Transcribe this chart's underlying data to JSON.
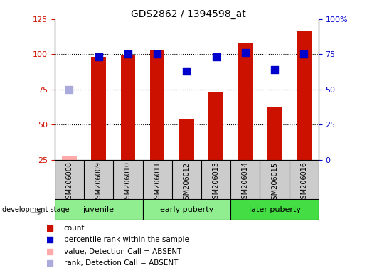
{
  "title": "GDS2862 / 1394598_at",
  "samples": [
    "GSM206008",
    "GSM206009",
    "GSM206010",
    "GSM206011",
    "GSM206012",
    "GSM206013",
    "GSM206014",
    "GSM206015",
    "GSM206016"
  ],
  "counts": [
    28,
    98,
    99,
    103,
    54,
    73,
    108,
    62,
    117
  ],
  "ranks": [
    50,
    73,
    75,
    75,
    63,
    73,
    76,
    64,
    75
  ],
  "absent_flags": [
    true,
    false,
    false,
    false,
    false,
    false,
    false,
    false,
    false
  ],
  "group_info": [
    {
      "label": "juvenile",
      "start": 0,
      "end": 2,
      "color": "#90EE90"
    },
    {
      "label": "early puberty",
      "start": 3,
      "end": 5,
      "color": "#90EE90"
    },
    {
      "label": "later puberty",
      "start": 6,
      "end": 8,
      "color": "#44DD44"
    }
  ],
  "ylim_left": [
    25,
    125
  ],
  "ylim_right": [
    0,
    100
  ],
  "yticks_left": [
    25,
    50,
    75,
    100,
    125
  ],
  "yticks_right": [
    0,
    25,
    50,
    75,
    100
  ],
  "ytick_labels_right": [
    "0",
    "25",
    "50",
    "75",
    "100%"
  ],
  "bar_color_present": "#CC1100",
  "bar_color_absent": "#FFAAAA",
  "rank_color_present": "#0000CC",
  "rank_color_absent": "#AAAADD",
  "bar_width": 0.5,
  "rank_marker_size": 45,
  "background_color": "#CCCCCC",
  "left_label_color": "#CC1100",
  "right_label_color": "#0000CC",
  "legend_items": [
    {
      "color": "#CC1100",
      "label": "count"
    },
    {
      "color": "#0000CC",
      "label": "percentile rank within the sample"
    },
    {
      "color": "#FFAAAA",
      "label": "value, Detection Call = ABSENT"
    },
    {
      "color": "#AAAADD",
      "label": "rank, Detection Call = ABSENT"
    }
  ]
}
